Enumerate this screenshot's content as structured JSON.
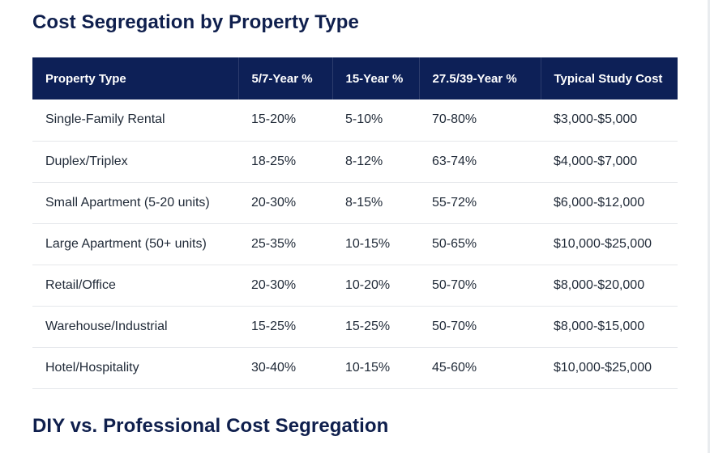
{
  "sections": {
    "title_1": "Cost Segregation by Property Type",
    "title_2": "DIY vs. Professional Cost Segregation"
  },
  "table": {
    "headers": [
      "Property Type",
      "5/7-Year %",
      "15-Year %",
      "27.5/39-Year %",
      "Typical Study Cost"
    ],
    "rows": [
      [
        "Single-Family Rental",
        "15-20%",
        "5-10%",
        "70-80%",
        "$3,000-$5,000"
      ],
      [
        "Duplex/Triplex",
        "18-25%",
        "8-12%",
        "63-74%",
        "$4,000-$7,000"
      ],
      [
        "Small Apartment (5-20 units)",
        "20-30%",
        "8-15%",
        "55-72%",
        "$6,000-$12,000"
      ],
      [
        "Large Apartment (50+ units)",
        "25-35%",
        "10-15%",
        "50-65%",
        "$10,000-$25,000"
      ],
      [
        "Retail/Office",
        "20-30%",
        "10-20%",
        "50-70%",
        "$8,000-$20,000"
      ],
      [
        "Warehouse/Industrial",
        "15-25%",
        "15-25%",
        "50-70%",
        "$8,000-$15,000"
      ],
      [
        "Hotel/Hospitality",
        "30-40%",
        "10-15%",
        "45-60%",
        "$10,000-$25,000"
      ]
    ]
  },
  "colors": {
    "header_bg": "#0d2057",
    "title_color": "#0f1f4d",
    "row_divider": "#e5e7eb"
  }
}
